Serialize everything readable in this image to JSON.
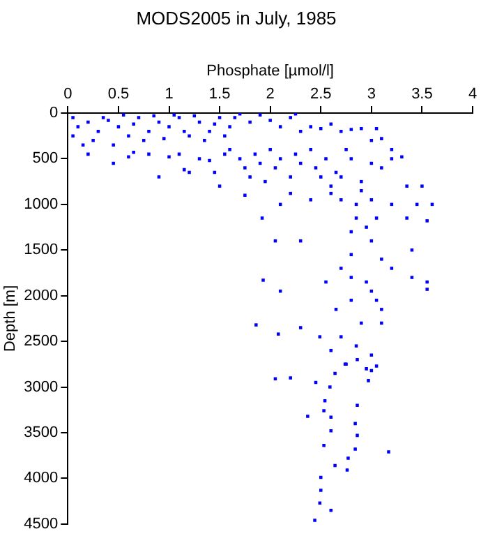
{
  "chart_data": {
    "type": "scatter",
    "title": "MODS2005 in July, 1985",
    "xlabel": "Phosphate [µmol/l]",
    "ylabel": "Depth [m]",
    "xlim": [
      0,
      4
    ],
    "xticks": [
      0,
      0.5,
      1,
      1.5,
      2,
      2.5,
      3,
      3.5,
      4
    ],
    "ylim": [
      4500,
      0
    ],
    "yticks": [
      0,
      500,
      1000,
      1500,
      2000,
      2500,
      3000,
      3500,
      4000,
      4500
    ],
    "grid": false,
    "legend": false,
    "marker": "square",
    "series": [
      {
        "color": "#0000ff",
        "x": [
          0.05,
          0.1,
          0.2,
          0.3,
          0.4,
          0.5,
          0.6,
          0.7,
          0.8,
          0.9,
          1.0,
          1.1,
          1.2,
          1.3,
          1.4,
          1.5,
          1.6,
          0.05,
          0.15,
          0.25,
          0.45,
          0.35,
          0.55,
          0.65,
          0.75,
          0.85,
          0.95,
          1.05,
          1.15,
          1.25,
          1.35,
          1.45,
          1.55,
          1.65,
          1.7,
          1.8,
          1.9,
          2.0,
          2.1,
          2.2,
          2.25,
          2.3,
          2.4,
          2.5,
          2.6,
          2.7,
          2.8,
          2.9,
          3.05,
          3.1,
          0.2,
          0.45,
          0.6,
          0.65,
          0.8,
          0.9,
          1.0,
          1.1,
          1.15,
          1.2,
          1.3,
          1.4,
          1.45,
          1.5,
          1.55,
          1.6,
          1.7,
          1.75,
          1.8,
          1.85,
          1.9,
          1.95,
          2.0,
          2.05,
          2.1,
          2.2,
          2.25,
          2.3,
          2.4,
          2.45,
          2.5,
          2.55,
          2.6,
          2.65,
          2.7,
          2.8,
          2.9,
          3.0,
          3.1,
          3.2,
          3.3,
          3.35,
          3.5,
          3.0,
          2.75,
          3.2,
          2.9,
          2.6,
          1.75,
          2.2,
          2.7,
          2.85,
          3.0,
          3.2,
          3.45,
          3.6,
          2.4,
          2.1,
          1.92,
          2.85,
          3.05,
          3.35,
          3.55,
          2.95,
          2.8,
          3.0,
          3.4,
          2.05,
          2.3,
          2.8,
          3.1,
          2.7,
          3.2,
          2.8,
          3.4,
          2.95,
          2.55,
          3.0,
          2.1,
          2.8,
          3.05,
          2.65,
          3.1,
          2.9,
          3.1,
          2.3,
          2.7,
          2.85,
          3.0,
          2.6,
          2.75,
          2.95,
          2.2,
          2.45,
          1.93,
          3.55,
          3.55,
          1.86,
          2.08,
          2.49,
          2.05,
          3.17,
          2.44,
          2.6,
          2.49,
          2.5,
          2.5,
          2.76,
          2.64,
          2.77,
          2.84,
          2.53,
          2.6,
          2.6,
          2.53,
          2.84,
          2.86,
          2.54,
          2.86,
          2.59,
          2.97,
          2.74,
          2.86,
          3.0,
          3.05,
          2.37,
          2.64
        ],
        "values": [
          50,
          150,
          100,
          200,
          80,
          150,
          250,
          50,
          200,
          100,
          150,
          50,
          250,
          100,
          200,
          50,
          150,
          250,
          350,
          300,
          350,
          50,
          20,
          120,
          300,
          30,
          280,
          20,
          200,
          30,
          300,
          120,
          250,
          50,
          10,
          100,
          20,
          80,
          150,
          50,
          10,
          200,
          150,
          170,
          120,
          200,
          180,
          170,
          170,
          280,
          450,
          550,
          480,
          430,
          450,
          700,
          480,
          450,
          620,
          650,
          500,
          520,
          650,
          800,
          450,
          400,
          500,
          600,
          700,
          450,
          550,
          750,
          400,
          600,
          500,
          700,
          450,
          550,
          400,
          600,
          700,
          500,
          800,
          650,
          700,
          500,
          750,
          550,
          600,
          500,
          480,
          800,
          800,
          300,
          400,
          400,
          850,
          880,
          900,
          880,
          950,
          1000,
          950,
          1000,
          1000,
          1000,
          950,
          1000,
          1150,
          1150,
          1150,
          1150,
          1180,
          1250,
          1300,
          1400,
          1500,
          1400,
          1400,
          1550,
          1600,
          1700,
          1700,
          1800,
          1800,
          1850,
          1850,
          1950,
          1950,
          2050,
          2050,
          2150,
          2150,
          2300,
          2300,
          2350,
          2450,
          2550,
          2650,
          2600,
          2750,
          2800,
          2900,
          2950,
          1830,
          1850,
          1930,
          2320,
          2420,
          2450,
          2910,
          3710,
          4460,
          4350,
          4270,
          4130,
          3990,
          3910,
          3860,
          3780,
          3680,
          3640,
          3480,
          3330,
          3260,
          3400,
          3530,
          3150,
          3200,
          3000,
          2930,
          2750,
          2700,
          2820,
          2770,
          3320,
          2850
        ]
      }
    ]
  }
}
